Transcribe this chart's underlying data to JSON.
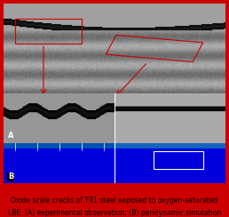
{
  "fig_width": 2.58,
  "fig_height": 2.44,
  "dpi": 100,
  "outer_border_color": "#cc0000",
  "outer_border_linewidth": 1.5,
  "caption_text_line1": "Oxide scale cracks of T91 steel exposed to oxygen-saturated",
  "caption_text_line2": "LBE: (A) experimental observation; (B) peridynamic simulation",
  "caption_bg_color": "#b8d4a0",
  "caption_text_color": "#000000",
  "caption_fontsize": 5.5,
  "label_A_text": "A",
  "label_B_text": "B",
  "label_color": "#ffffff",
  "label_fontsize": 6,
  "blue_panel_color": "#0000ee",
  "blue_top_strip_color": "#1a6aaa",
  "divider_color": "#ffffff",
  "red_box_color": "#cc0000",
  "arrow_color": "#cc0000",
  "top_panel_bg": "#888888",
  "bottom_panel_bg": "#0000cc"
}
